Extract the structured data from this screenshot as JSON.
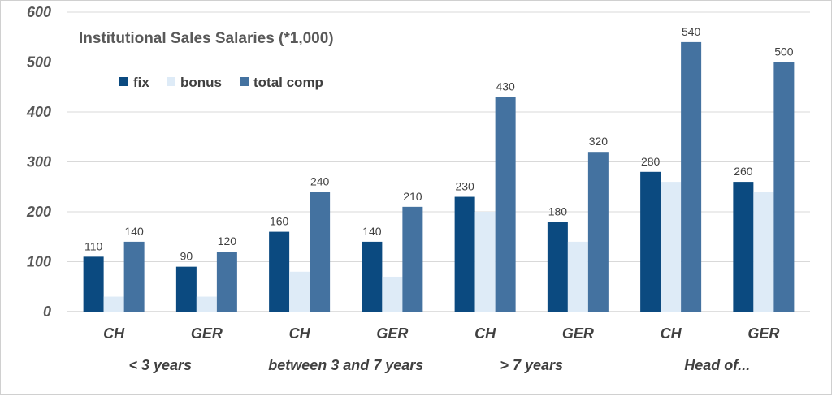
{
  "chart_data": {
    "type": "bar",
    "title": "Institutional Sales Salaries (*1,000)",
    "ylim": [
      0,
      600
    ],
    "yticks": [
      0,
      100,
      200,
      300,
      400,
      500,
      600
    ],
    "grid": true,
    "legend_position": "top-left",
    "categories": [
      "CH",
      "GER",
      "CH",
      "GER",
      "CH",
      "GER",
      "CH",
      "GER"
    ],
    "groups": [
      "< 3 years",
      "between 3 and 7 years",
      "> 7 years",
      "Head of..."
    ],
    "series": [
      {
        "name": "fix",
        "color": "#0b4a80",
        "values": [
          110,
          90,
          160,
          140,
          230,
          180,
          280,
          260
        ],
        "labeled": true
      },
      {
        "name": "bonus",
        "color": "#deebf7",
        "values": [
          30,
          30,
          80,
          70,
          200,
          140,
          260,
          240
        ],
        "labeled": false
      },
      {
        "name": "total comp",
        "color": "#4472a0",
        "values": [
          140,
          120,
          240,
          210,
          430,
          320,
          540,
          500
        ],
        "labeled": true
      }
    ]
  }
}
